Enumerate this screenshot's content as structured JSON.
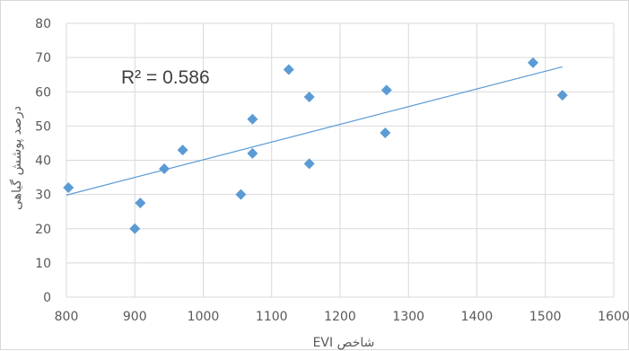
{
  "chart_data": {
    "type": "scatter",
    "title": "",
    "xlabel": "شاخص EVI",
    "ylabel": "درصد پوشش گیاهی",
    "xlim": [
      800,
      1600
    ],
    "ylim": [
      0,
      80
    ],
    "x_ticks": [
      "800",
      "900",
      "1000",
      "1100",
      "1200",
      "1300",
      "1400",
      "1500",
      "1600"
    ],
    "y_ticks": [
      "0",
      "10",
      "20",
      "30",
      "40",
      "50",
      "60",
      "70",
      "80"
    ],
    "grid": true,
    "legend": "none",
    "colors": {
      "marker": "#5b9bd5",
      "trendline": "#5b9bd5",
      "grid": "#d9d9d9"
    },
    "points": [
      {
        "x": 803,
        "y": 32
      },
      {
        "x": 900,
        "y": 20
      },
      {
        "x": 908,
        "y": 27.5
      },
      {
        "x": 943,
        "y": 37.5
      },
      {
        "x": 970,
        "y": 43
      },
      {
        "x": 1055,
        "y": 30
      },
      {
        "x": 1072,
        "y": 52
      },
      {
        "x": 1072,
        "y": 42
      },
      {
        "x": 1125,
        "y": 66.5
      },
      {
        "x": 1155,
        "y": 58.5
      },
      {
        "x": 1155,
        "y": 39
      },
      {
        "x": 1266,
        "y": 48
      },
      {
        "x": 1268,
        "y": 60.5
      },
      {
        "x": 1482,
        "y": 68.5
      },
      {
        "x": 1525,
        "y": 59
      }
    ],
    "trendline": {
      "x": [
        800,
        1525
      ],
      "y": [
        29.8,
        67.3
      ]
    },
    "annotation": "R² = 0.586"
  }
}
